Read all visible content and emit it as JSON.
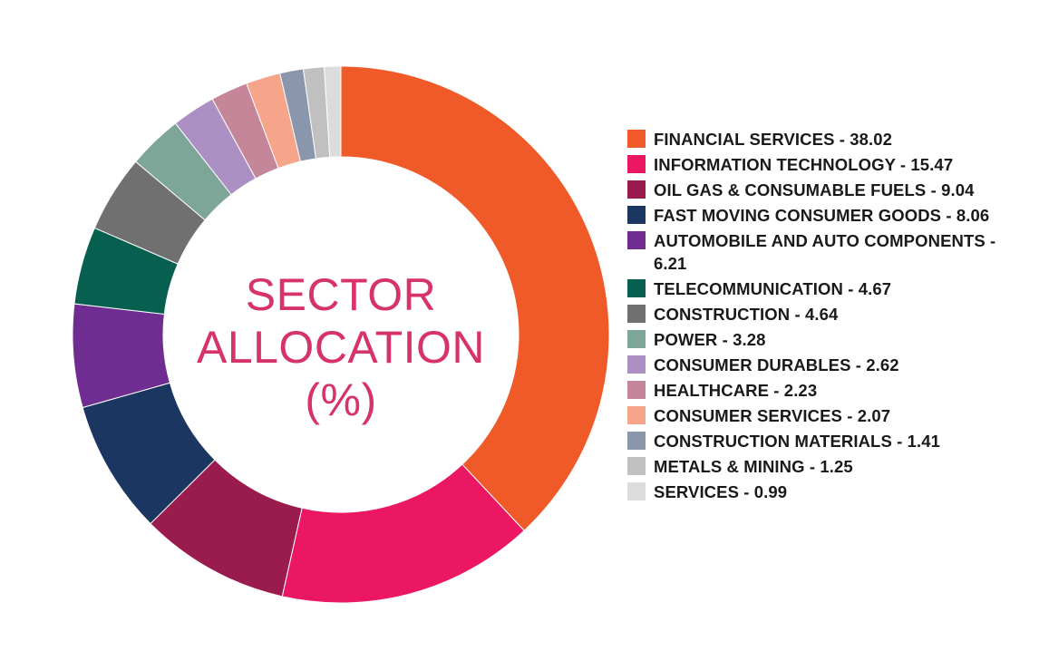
{
  "chart_data": {
    "type": "pie",
    "title_lines": [
      "SECTOR",
      "ALLOCATION",
      "(%)"
    ],
    "legend_placement": "right",
    "slices": [
      {
        "label": "FINANCIAL SERVICES - 38.02",
        "value": 38.02,
        "color": "#f05a28"
      },
      {
        "label": "INFORMATION TECHNOLOGY - 15.47",
        "value": 15.47,
        "color": "#ec1763"
      },
      {
        "label": "OIL GAS & CONSUMABLE FUELS - 9.04",
        "value": 9.04,
        "color": "#9a1b4d"
      },
      {
        "label": "FAST MOVING CONSUMER GOODS - 8.06",
        "value": 8.06,
        "color": "#1b3761"
      },
      {
        "label": "AUTOMOBILE AND AUTO COMPONENTS - 6.21",
        "value": 6.21,
        "color": "#6f2d91"
      },
      {
        "label": "TELECOMMUNICATION - 4.67",
        "value": 4.67,
        "color": "#075f4f"
      },
      {
        "label": "CONSTRUCTION - 4.64",
        "value": 4.64,
        "color": "#707070"
      },
      {
        "label": "POWER - 3.28",
        "value": 3.28,
        "color": "#7ea698"
      },
      {
        "label": "CONSUMER DURABLES - 2.62",
        "value": 2.62,
        "color": "#ac8fc3"
      },
      {
        "label": "HEALTHCARE - 2.23",
        "value": 2.23,
        "color": "#c6869a"
      },
      {
        "label": "CONSUMER SERVICES - 2.07",
        "value": 2.07,
        "color": "#f6a48a"
      },
      {
        "label": "CONSTRUCTION MATERIALS - 1.41",
        "value": 1.41,
        "color": "#8a96ab"
      },
      {
        "label": "METALS & MINING - 1.25",
        "value": 1.25,
        "color": "#c0c0c0"
      },
      {
        "label": "SERVICES - 0.99",
        "value": 0.99,
        "color": "#dcdcdc"
      }
    ]
  }
}
